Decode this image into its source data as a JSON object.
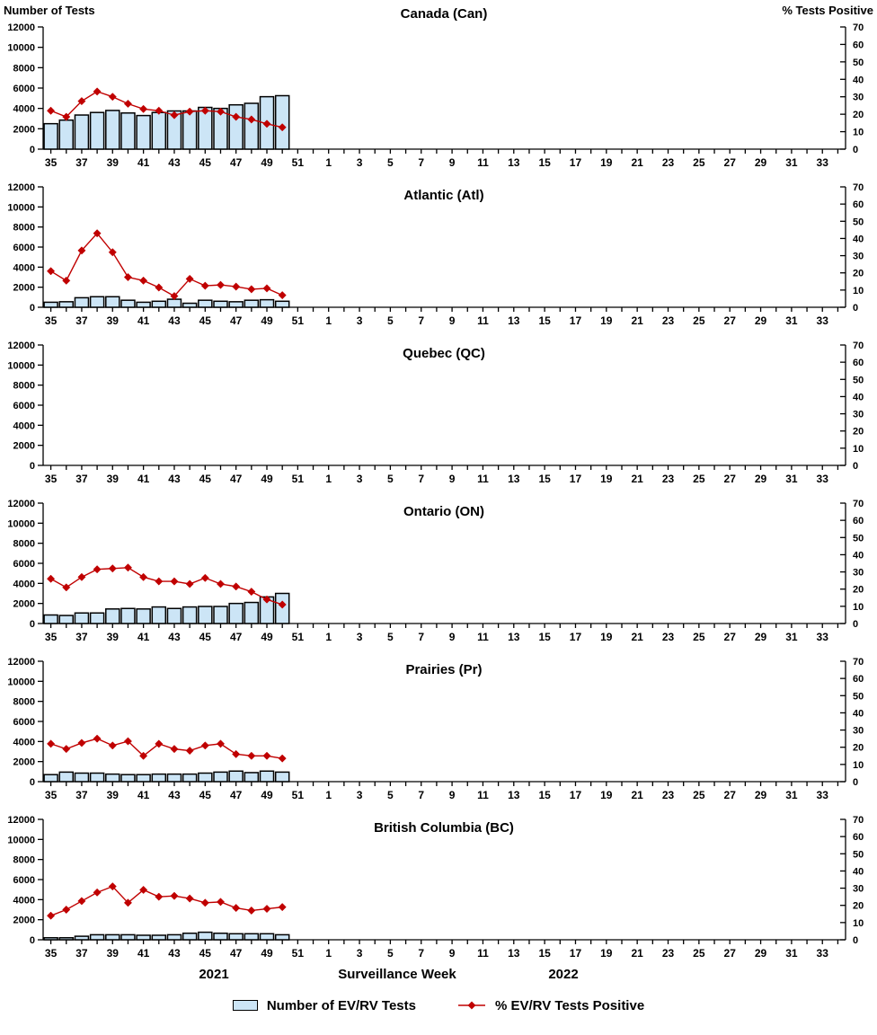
{
  "colors": {
    "bar_fill": "#CCE5F6",
    "bar_stroke": "#000000",
    "line_color": "#C00000",
    "axis_color": "#000000",
    "text_color": "#000000"
  },
  "axes": {
    "left_title": "Number of Tests",
    "right_title": "% Tests Positive",
    "left_ticks": [
      0,
      2000,
      4000,
      6000,
      8000,
      10000,
      12000
    ],
    "right_ticks": [
      0,
      10,
      20,
      30,
      40,
      50,
      60,
      70
    ],
    "left_max": 12000,
    "right_max": 70,
    "week_slots": [
      35,
      36,
      37,
      38,
      39,
      40,
      41,
      42,
      43,
      44,
      45,
      46,
      47,
      48,
      49,
      50,
      51,
      52,
      1,
      2,
      3,
      4,
      5,
      6,
      7,
      8,
      9,
      10,
      11,
      12,
      13,
      14,
      15,
      16,
      17,
      18,
      19,
      20,
      21,
      22,
      23,
      24,
      25,
      26,
      27,
      28,
      29,
      30,
      31,
      32,
      33,
      34
    ]
  },
  "x_axis": {
    "label": "Surveillance Week",
    "year_left": "2021",
    "year_right": "2022"
  },
  "legend": {
    "bar_label": "Number of EV/RV Tests",
    "line_label": "% EV/RV Tests Positive"
  },
  "chart_data": [
    {
      "type": "bar+line",
      "title": "Canada (Can)",
      "categories": [
        35,
        36,
        37,
        38,
        39,
        40,
        41,
        42,
        43,
        44,
        45,
        46,
        47,
        48,
        49,
        50
      ],
      "series": [
        {
          "name": "Number of EV/RV Tests",
          "type": "bar",
          "axis": "left",
          "values": [
            2500,
            2850,
            3350,
            3600,
            3800,
            3550,
            3300,
            3600,
            3750,
            3750,
            4100,
            4000,
            4350,
            4500,
            5150,
            5250
          ]
        },
        {
          "name": "% EV/RV Tests Positive",
          "type": "line",
          "axis": "right",
          "values": [
            22,
            18.5,
            27.5,
            33,
            30,
            26,
            23,
            22,
            19.5,
            21.5,
            22,
            21.5,
            18.5,
            17,
            14.5,
            12.5
          ]
        }
      ],
      "left_ylim": [
        0,
        12000
      ],
      "right_ylim": [
        0,
        70
      ]
    },
    {
      "type": "bar+line",
      "title": "Atlantic (Atl)",
      "categories": [
        35,
        36,
        37,
        38,
        39,
        40,
        41,
        42,
        43,
        44,
        45,
        46,
        47,
        48,
        49,
        50
      ],
      "series": [
        {
          "name": "Number of EV/RV Tests",
          "type": "bar",
          "axis": "left",
          "values": [
            500,
            550,
            950,
            1050,
            1050,
            700,
            500,
            600,
            800,
            400,
            700,
            600,
            550,
            700,
            750,
            600
          ]
        },
        {
          "name": "% EV/RV Tests Positive",
          "type": "line",
          "axis": "right",
          "values": [
            21,
            15.5,
            33,
            43,
            32,
            17.5,
            15.5,
            11.5,
            6.5,
            16.5,
            12.5,
            13,
            12,
            10.5,
            11,
            7
          ]
        }
      ],
      "left_ylim": [
        0,
        12000
      ],
      "right_ylim": [
        0,
        70
      ]
    },
    {
      "type": "bar+line",
      "title": "Quebec (QC)",
      "categories": [],
      "series": [
        {
          "name": "Number of EV/RV Tests",
          "type": "bar",
          "axis": "left",
          "values": []
        },
        {
          "name": "% EV/RV Tests Positive",
          "type": "line",
          "axis": "right",
          "values": []
        }
      ],
      "left_ylim": [
        0,
        12000
      ],
      "right_ylim": [
        0,
        70
      ]
    },
    {
      "type": "bar+line",
      "title": "Ontario (ON)",
      "categories": [
        35,
        36,
        37,
        38,
        39,
        40,
        41,
        42,
        43,
        44,
        45,
        46,
        47,
        48,
        49,
        50
      ],
      "series": [
        {
          "name": "Number of EV/RV Tests",
          "type": "bar",
          "axis": "left",
          "values": [
            850,
            800,
            1050,
            1050,
            1450,
            1500,
            1450,
            1650,
            1500,
            1650,
            1700,
            1700,
            2000,
            2100,
            2650,
            3000
          ]
        },
        {
          "name": "% EV/RV Tests Positive",
          "type": "line",
          "axis": "right",
          "values": [
            26,
            21,
            27,
            31.5,
            32,
            32.5,
            27,
            24.5,
            24.5,
            23,
            26.5,
            23,
            21.5,
            18.5,
            14,
            11
          ]
        }
      ],
      "left_ylim": [
        0,
        12000
      ],
      "right_ylim": [
        0,
        70
      ]
    },
    {
      "type": "bar+line",
      "title": "Prairies (Pr)",
      "categories": [
        35,
        36,
        37,
        38,
        39,
        40,
        41,
        42,
        43,
        44,
        45,
        46,
        47,
        48,
        49,
        50
      ],
      "series": [
        {
          "name": "Number of EV/RV Tests",
          "type": "bar",
          "axis": "left",
          "values": [
            700,
            950,
            850,
            850,
            750,
            700,
            700,
            750,
            750,
            750,
            850,
            950,
            1050,
            900,
            1050,
            950
          ]
        },
        {
          "name": "% EV/RV Tests Positive",
          "type": "line",
          "axis": "right",
          "values": [
            22,
            19,
            22.5,
            25,
            21,
            23.5,
            15,
            22,
            19,
            18,
            21,
            22,
            16,
            15,
            15,
            13.5
          ]
        }
      ],
      "left_ylim": [
        0,
        12000
      ],
      "right_ylim": [
        0,
        70
      ]
    },
    {
      "type": "bar+line",
      "title": "British Columbia (BC)",
      "categories": [
        35,
        36,
        37,
        38,
        39,
        40,
        41,
        42,
        43,
        44,
        45,
        46,
        47,
        48,
        49,
        50
      ],
      "series": [
        {
          "name": "Number of EV/RV Tests",
          "type": "bar",
          "axis": "left",
          "values": [
            200,
            200,
            350,
            500,
            500,
            500,
            450,
            450,
            500,
            650,
            750,
            650,
            600,
            600,
            600,
            500
          ]
        },
        {
          "name": "% EV/RV Tests Positive",
          "type": "line",
          "axis": "right",
          "values": [
            14,
            17.5,
            22.5,
            27.5,
            31,
            21.5,
            29,
            25,
            25.5,
            24,
            21.5,
            22,
            18.5,
            17,
            18,
            19
          ]
        }
      ],
      "left_ylim": [
        0,
        12000
      ],
      "right_ylim": [
        0,
        70
      ]
    }
  ]
}
